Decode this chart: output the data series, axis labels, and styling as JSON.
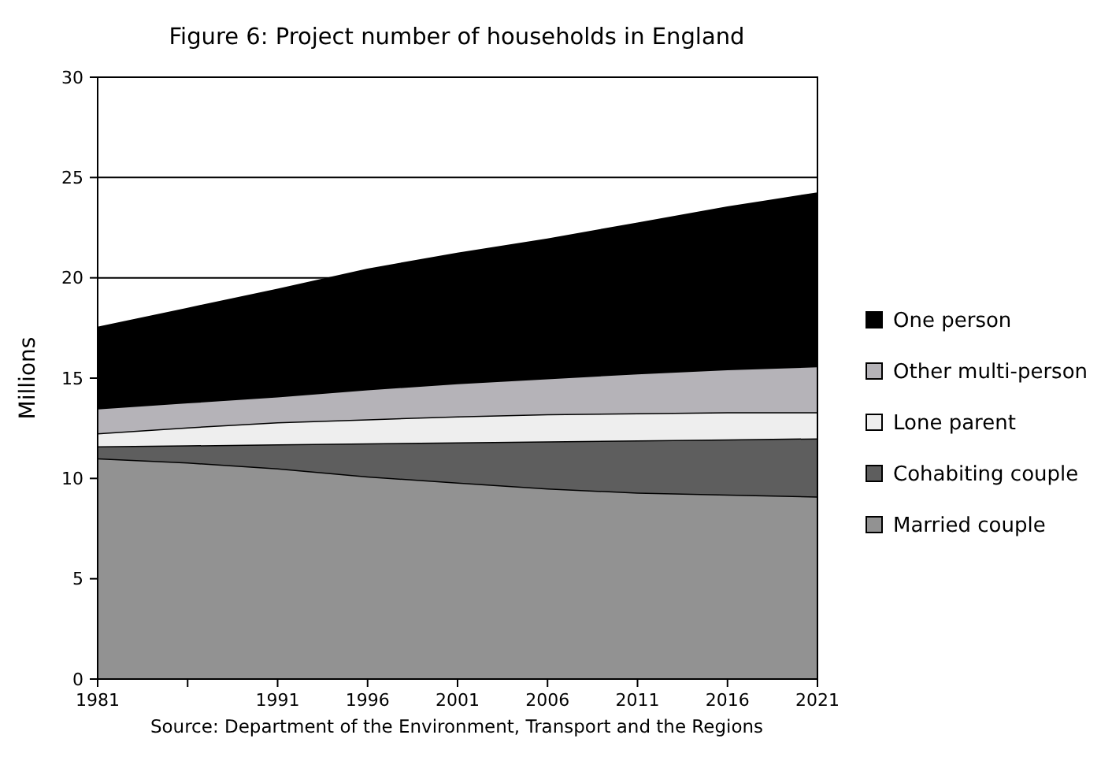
{
  "chart_data": {
    "type": "area",
    "stacked": true,
    "title": "Figure 6: Project number of households in England",
    "ylabel": "Millions",
    "categories": [
      "1981",
      null,
      "1991",
      "1996",
      "2001",
      "2006",
      "2011",
      "2016",
      "2021"
    ],
    "series": [
      {
        "name": "Married couple",
        "color": "#929292",
        "values": [
          11.0,
          10.8,
          10.5,
          10.1,
          9.8,
          9.5,
          9.3,
          9.2,
          9.1
        ]
      },
      {
        "name": "Cohabiting couple",
        "color": "#5e5e5e",
        "values": [
          0.6,
          0.85,
          1.2,
          1.65,
          2.0,
          2.35,
          2.6,
          2.75,
          2.9
        ]
      },
      {
        "name": "Lone parent",
        "color": "#eeeeee",
        "values": [
          0.65,
          0.9,
          1.1,
          1.2,
          1.3,
          1.35,
          1.35,
          1.35,
          1.3
        ]
      },
      {
        "name": "Other multi-person",
        "color": "#b5b3b8",
        "values": [
          1.25,
          1.25,
          1.3,
          1.5,
          1.65,
          1.8,
          2.0,
          2.15,
          2.3
        ]
      },
      {
        "name": "One person",
        "color": "#000000",
        "values": [
          4.0,
          4.65,
          5.3,
          5.95,
          6.45,
          6.9,
          7.45,
          8.05,
          8.6
        ]
      }
    ],
    "ylim": [
      0,
      30
    ],
    "yticks": [
      0,
      5,
      10,
      15,
      20,
      25,
      30
    ],
    "grid": "y",
    "legend": "right",
    "annotations": [
      "Source: Department of the Environment, Transport and the Regions"
    ]
  }
}
